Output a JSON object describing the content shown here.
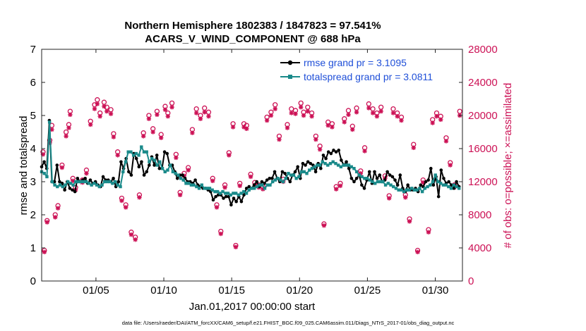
{
  "chart_data": {
    "type": "line",
    "title_line1": "Northern Hemisphere 1802383 / 1847823 = 97.541%",
    "title_line2": "ACARS_V_WIND_COMPONENT @ 688 hPa",
    "xlabel": "Jan.01,2017 00:00:00 start",
    "ylabel_left": "rmse and totalspread",
    "ylabel_right": "# of obs: o=possible; ×=assimilated",
    "xlim": [
      1,
      32
    ],
    "ylim_left": [
      0,
      7
    ],
    "ylim_right": [
      0,
      28000
    ],
    "x_ticks": [
      5,
      10,
      15,
      20,
      25,
      30
    ],
    "x_tick_labels": [
      "01/05",
      "01/10",
      "01/15",
      "01/20",
      "01/25",
      "01/30"
    ],
    "y_ticks_left": [
      "0",
      "1",
      "2",
      "3",
      "4",
      "5",
      "6",
      "7"
    ],
    "y_ticks_right": [
      "0",
      "4000",
      "8000",
      "12000",
      "16000",
      "20000",
      "24000",
      "28000"
    ],
    "colors": {
      "rmse": "#000000",
      "spread": "#1a8a8a",
      "obs": "#cc1155",
      "legend_text": "#1f4fd8"
    },
    "series": [
      {
        "name": "rmse grand pr = 3.1095",
        "key": "rmse",
        "values": [
          3.45,
          3.6,
          3.4,
          4.85,
          3.0,
          3.0,
          3.5,
          3.0,
          2.95,
          2.75,
          3.0,
          2.8,
          2.75,
          2.7,
          3.1,
          3.0,
          3.05,
          3.1,
          2.95,
          3.05,
          2.95,
          3.0,
          2.9,
          2.85,
          3.15,
          3.05,
          3.05,
          3.0,
          3.1,
          2.85,
          3.0,
          3.6,
          3.4,
          3.7,
          3.3,
          3.2,
          3.85,
          3.7,
          3.45,
          3.6,
          3.2,
          3.3,
          3.5,
          3.75,
          3.5,
          3.8,
          3.4,
          3.4,
          3.9,
          3.85,
          3.5,
          3.5,
          3.3,
          3.1,
          3.2,
          3.2,
          3.1,
          3.0,
          3.0,
          2.95,
          3.05,
          2.9,
          2.85,
          2.8,
          2.8,
          2.75,
          2.7,
          2.45,
          2.55,
          2.6,
          2.6,
          2.5,
          2.55,
          2.55,
          2.3,
          2.5,
          2.4,
          2.55,
          2.4,
          2.6,
          2.8,
          2.85,
          2.8,
          2.9,
          3.0,
          2.85,
          3.0,
          2.95,
          3.05,
          3.1,
          3.1,
          3.3,
          3.1,
          3.0,
          3.3,
          3.25,
          3.1,
          3.0,
          3.2,
          3.3,
          3.45,
          3.1,
          3.55,
          3.5,
          3.6,
          3.55,
          3.5,
          3.3,
          3.55,
          3.4,
          3.8,
          3.7,
          3.9,
          3.85,
          3.95,
          3.9,
          3.95,
          3.65,
          3.5,
          3.6,
          3.4,
          3.1,
          3.0,
          3.1,
          3.2,
          2.9,
          2.8,
          3.05,
          3.3,
          2.95,
          3.3,
          3.1,
          3.2,
          3.0,
          3.05,
          3.3,
          3.2,
          3.15,
          3.05,
          2.9,
          3.2,
          2.8,
          2.7,
          2.9,
          2.75,
          2.75,
          2.8,
          2.7,
          2.9,
          2.85,
          3.0,
          3.05,
          3.4,
          2.9,
          3.15,
          2.55,
          3.35,
          3.1,
          2.95,
          3.0,
          2.9,
          2.8,
          3.0,
          2.85
        ]
      },
      {
        "name": "totalspread grand pr = 3.0811",
        "key": "spread",
        "values": [
          3.3,
          3.25,
          3.15,
          4.8,
          3.0,
          2.9,
          2.85,
          2.9,
          2.85,
          2.9,
          3.0,
          2.95,
          2.9,
          3.0,
          3.0,
          3.0,
          3.0,
          3.0,
          2.95,
          2.9,
          2.95,
          2.9,
          2.85,
          2.9,
          3.0,
          3.0,
          3.0,
          2.95,
          3.0,
          2.9,
          2.85,
          3.3,
          3.6,
          3.9,
          3.9,
          3.8,
          3.85,
          3.8,
          4.05,
          3.9,
          3.9,
          3.6,
          3.7,
          3.65,
          3.5,
          3.6,
          3.4,
          3.3,
          3.35,
          3.5,
          3.3,
          3.25,
          3.2,
          3.1,
          3.05,
          2.95,
          2.95,
          2.9,
          2.9,
          2.85,
          2.8,
          2.9,
          2.8,
          2.8,
          2.8,
          2.75,
          2.7,
          2.7,
          2.65,
          2.7,
          2.65,
          2.65,
          2.6,
          2.65,
          2.65,
          2.6,
          2.65,
          2.7,
          2.65,
          2.75,
          2.8,
          2.8,
          2.85,
          2.9,
          2.9,
          2.8,
          2.9,
          2.9,
          3.0,
          3.05,
          3.1,
          3.05,
          3.0,
          3.1,
          3.25,
          3.2,
          3.2,
          3.1,
          3.15,
          3.3,
          3.3,
          3.25,
          3.35,
          3.4,
          3.45,
          3.5,
          3.5,
          3.6,
          3.55,
          3.5,
          3.55,
          3.6,
          3.55,
          3.5,
          3.45,
          3.5,
          3.5,
          3.5,
          3.45,
          3.4,
          3.3,
          3.2,
          3.15,
          3.1,
          3.1,
          3.05,
          3.0,
          2.95,
          3.0,
          3.0,
          3.0,
          2.9,
          2.95,
          2.9,
          2.85,
          2.8,
          2.75,
          2.75,
          2.7,
          2.75,
          2.75,
          2.8,
          2.75,
          2.75,
          2.8,
          2.7,
          2.8,
          2.85,
          2.9,
          3.0,
          3.2,
          3.0,
          2.95,
          2.9,
          2.9,
          2.85,
          2.8,
          2.9,
          2.85,
          2.8
        ]
      }
    ],
    "obs_possible": [
      [
        1.1,
        15600
      ],
      [
        1.2,
        3700
      ],
      [
        1.4,
        7300
      ],
      [
        1.6,
        17000
      ],
      [
        1.75,
        18800
      ],
      [
        2.0,
        8000
      ],
      [
        2.2,
        9100
      ],
      [
        2.5,
        14000
      ],
      [
        2.8,
        18000
      ],
      [
        3.0,
        18900
      ],
      [
        3.1,
        20500
      ],
      [
        3.3,
        12400
      ],
      [
        3.5,
        11300
      ],
      [
        4.0,
        12200
      ],
      [
        4.3,
        13400
      ],
      [
        4.6,
        19300
      ],
      [
        4.9,
        21300
      ],
      [
        5.1,
        21900
      ],
      [
        5.3,
        20300
      ],
      [
        5.6,
        21600
      ],
      [
        5.8,
        21000
      ],
      [
        6.1,
        20700
      ],
      [
        6.3,
        17800
      ],
      [
        6.6,
        15600
      ],
      [
        6.9,
        10000
      ],
      [
        7.2,
        9200
      ],
      [
        7.6,
        5900
      ],
      [
        7.9,
        5300
      ],
      [
        8.2,
        10400
      ],
      [
        8.5,
        17900
      ],
      [
        8.9,
        20000
      ],
      [
        9.2,
        18400
      ],
      [
        9.5,
        20500
      ],
      [
        9.8,
        17700
      ],
      [
        10.1,
        21100
      ],
      [
        10.3,
        20300
      ],
      [
        10.6,
        21500
      ],
      [
        10.9,
        15300
      ],
      [
        11.2,
        10700
      ],
      [
        11.5,
        13000
      ],
      [
        11.8,
        13700
      ],
      [
        12.1,
        18300
      ],
      [
        12.4,
        20800
      ],
      [
        12.7,
        20000
      ],
      [
        13.0,
        20900
      ],
      [
        13.3,
        20400
      ],
      [
        13.6,
        12400
      ],
      [
        13.9,
        9200
      ],
      [
        14.2,
        6000
      ],
      [
        14.5,
        11600
      ],
      [
        14.8,
        15500
      ],
      [
        15.1,
        19000
      ],
      [
        15.3,
        4300
      ],
      [
        15.6,
        11800
      ],
      [
        15.9,
        19000
      ],
      [
        16.1,
        18800
      ],
      [
        16.4,
        12900
      ],
      [
        16.7,
        11900
      ],
      [
        17.0,
        11600
      ],
      [
        17.3,
        11400
      ],
      [
        17.6,
        19800
      ],
      [
        17.9,
        20400
      ],
      [
        18.2,
        21300
      ],
      [
        18.5,
        17500
      ],
      [
        18.8,
        12300
      ],
      [
        19.1,
        18900
      ],
      [
        19.4,
        20800
      ],
      [
        19.7,
        20600
      ],
      [
        20.1,
        21500
      ],
      [
        20.3,
        20400
      ],
      [
        20.6,
        21000
      ],
      [
        20.9,
        20300
      ],
      [
        21.2,
        17500
      ],
      [
        21.5,
        16300
      ],
      [
        21.8,
        6900
      ],
      [
        22.1,
        19200
      ],
      [
        22.4,
        19000
      ],
      [
        22.7,
        11400
      ],
      [
        23.0,
        11800
      ],
      [
        23.3,
        19600
      ],
      [
        23.6,
        20600
      ],
      [
        23.9,
        18700
      ],
      [
        24.2,
        20900
      ],
      [
        24.5,
        13300
      ],
      [
        24.8,
        16100
      ],
      [
        25.1,
        21400
      ],
      [
        25.4,
        20800
      ],
      [
        25.7,
        20300
      ],
      [
        26.0,
        21000
      ],
      [
        26.3,
        12700
      ],
      [
        26.6,
        10300
      ],
      [
        26.9,
        20800
      ],
      [
        27.2,
        20300
      ],
      [
        27.5,
        19800
      ],
      [
        27.8,
        10400
      ],
      [
        28.1,
        7500
      ],
      [
        28.4,
        16500
      ],
      [
        28.7,
        3700
      ],
      [
        29.1,
        12200
      ],
      [
        29.5,
        6200
      ],
      [
        29.8,
        19500
      ],
      [
        30.1,
        20300
      ],
      [
        30.4,
        19900
      ],
      [
        30.8,
        17300
      ],
      [
        31.1,
        14300
      ],
      [
        31.4,
        11600
      ],
      [
        31.8,
        20500
      ]
    ],
    "obs_assimilated": [
      [
        1.1,
        15300
      ],
      [
        1.2,
        3500
      ],
      [
        1.4,
        7100
      ],
      [
        1.6,
        16700
      ],
      [
        1.75,
        18300
      ],
      [
        2.0,
        7700
      ],
      [
        2.2,
        8800
      ],
      [
        2.5,
        13700
      ],
      [
        2.8,
        17500
      ],
      [
        3.0,
        18500
      ],
      [
        3.1,
        20100
      ],
      [
        3.3,
        12100
      ],
      [
        3.5,
        11000
      ],
      [
        4.0,
        11900
      ],
      [
        4.3,
        13000
      ],
      [
        4.6,
        18900
      ],
      [
        4.9,
        20800
      ],
      [
        5.1,
        21400
      ],
      [
        5.3,
        19900
      ],
      [
        5.6,
        21100
      ],
      [
        5.8,
        20500
      ],
      [
        6.1,
        20200
      ],
      [
        6.3,
        17400
      ],
      [
        6.6,
        15200
      ],
      [
        6.9,
        9700
      ],
      [
        7.2,
        8900
      ],
      [
        7.6,
        5600
      ],
      [
        7.9,
        5000
      ],
      [
        8.2,
        10100
      ],
      [
        8.5,
        17500
      ],
      [
        8.9,
        19600
      ],
      [
        9.2,
        18000
      ],
      [
        9.5,
        20100
      ],
      [
        9.8,
        17300
      ],
      [
        10.1,
        20700
      ],
      [
        10.3,
        19900
      ],
      [
        10.6,
        21000
      ],
      [
        10.9,
        14900
      ],
      [
        11.2,
        10400
      ],
      [
        11.5,
        12700
      ],
      [
        11.8,
        13400
      ],
      [
        12.1,
        17900
      ],
      [
        12.4,
        20300
      ],
      [
        12.7,
        19600
      ],
      [
        13.0,
        20400
      ],
      [
        13.3,
        19900
      ],
      [
        13.6,
        12100
      ],
      [
        13.9,
        8900
      ],
      [
        14.2,
        5700
      ],
      [
        14.5,
        11300
      ],
      [
        14.8,
        15200
      ],
      [
        15.1,
        18600
      ],
      [
        15.3,
        4100
      ],
      [
        15.6,
        11500
      ],
      [
        15.9,
        18600
      ],
      [
        16.1,
        18400
      ],
      [
        16.4,
        12600
      ],
      [
        16.7,
        11600
      ],
      [
        17.0,
        11300
      ],
      [
        17.3,
        11100
      ],
      [
        17.6,
        19400
      ],
      [
        17.9,
        20000
      ],
      [
        18.2,
        20800
      ],
      [
        18.5,
        17100
      ],
      [
        18.8,
        12000
      ],
      [
        19.1,
        18500
      ],
      [
        19.4,
        20300
      ],
      [
        19.7,
        20200
      ],
      [
        20.1,
        21000
      ],
      [
        20.3,
        20000
      ],
      [
        20.6,
        20500
      ],
      [
        20.9,
        19900
      ],
      [
        21.2,
        17100
      ],
      [
        21.5,
        15900
      ],
      [
        21.8,
        6700
      ],
      [
        22.1,
        18800
      ],
      [
        22.4,
        18600
      ],
      [
        22.7,
        11100
      ],
      [
        23.0,
        11500
      ],
      [
        23.3,
        19200
      ],
      [
        23.6,
        20100
      ],
      [
        23.9,
        18300
      ],
      [
        24.2,
        20400
      ],
      [
        24.5,
        13000
      ],
      [
        24.8,
        15700
      ],
      [
        25.1,
        20900
      ],
      [
        25.4,
        20300
      ],
      [
        25.7,
        19900
      ],
      [
        26.0,
        20500
      ],
      [
        26.3,
        12400
      ],
      [
        26.6,
        10000
      ],
      [
        26.9,
        20300
      ],
      [
        27.2,
        19900
      ],
      [
        27.5,
        19400
      ],
      [
        27.8,
        10100
      ],
      [
        28.1,
        7200
      ],
      [
        28.4,
        16100
      ],
      [
        28.7,
        3500
      ],
      [
        29.1,
        11900
      ],
      [
        29.5,
        5900
      ],
      [
        29.8,
        19100
      ],
      [
        30.1,
        19900
      ],
      [
        30.4,
        19500
      ],
      [
        30.8,
        16900
      ],
      [
        31.1,
        14000
      ],
      [
        31.4,
        11300
      ],
      [
        31.8,
        20000
      ]
    ]
  },
  "footer": "data file: /Users/raeder/DAI/ATM_forcXX/CAM6_setup/f.e21.FHIST_BGC.f09_025.CAM6assim.011/Diags_NTrS_2017-01/obs_diag_output.nc"
}
